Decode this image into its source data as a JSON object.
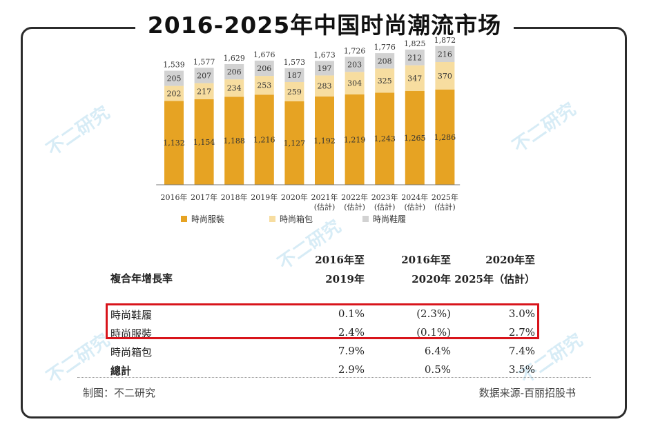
{
  "title": "2016-2025年中国时尚潮流市场",
  "watermark": "不二研究",
  "colors": {
    "apparel": "#E6A323",
    "bags": "#F7DDA0",
    "shoes": "#D2D2D2",
    "highlight": "#D8141B"
  },
  "chart_data": {
    "type": "bar",
    "stacked": true,
    "categories": [
      "2016年",
      "2017年",
      "2018年",
      "2019年",
      "2020年",
      "2021年\n(估計)",
      "2022年\n(估計)",
      "2023年\n(估計)",
      "2024年\n(估計)",
      "2025年\n(估計)"
    ],
    "series": [
      {
        "name": "時尚服裝",
        "values": [
          1132,
          1154,
          1188,
          1216,
          1127,
          1192,
          1219,
          1243,
          1265,
          1286
        ],
        "labels": [
          "1,132",
          "1,154",
          "1,188",
          "1,216",
          "1,127",
          "1,192",
          "1,219",
          "1,243",
          "1,265",
          "1,286"
        ]
      },
      {
        "name": "時尚箱包",
        "values": [
          202,
          217,
          234,
          253,
          259,
          283,
          304,
          325,
          347,
          370
        ],
        "labels": [
          "202",
          "217",
          "234",
          "253",
          "259",
          "283",
          "304",
          "325",
          "347",
          "370"
        ]
      },
      {
        "name": "時尚鞋履",
        "values": [
          205,
          207,
          206,
          206,
          187,
          197,
          203,
          208,
          212,
          216
        ],
        "labels": [
          "205",
          "207",
          "206",
          "206",
          "187",
          "197",
          "203",
          "208",
          "212",
          "216"
        ]
      }
    ],
    "totals": [
      1539,
      1577,
      1629,
      1676,
      1573,
      1673,
      1726,
      1776,
      1825,
      1872
    ],
    "total_labels": [
      "1,539",
      "1,577",
      "1,629",
      "1,676",
      "1,573",
      "1,673",
      "1,726",
      "1,776",
      "1,825",
      "1,872"
    ],
    "legend_position": "bottom"
  },
  "growth_table": {
    "row_header": "複合年增長率",
    "columns": [
      {
        "line1": "2016年至",
        "line2": "2019年"
      },
      {
        "line1": "2016年至",
        "line2": "2020年"
      },
      {
        "line1": "2020年至",
        "line2": "2025年（估計）"
      }
    ],
    "rows": [
      {
        "label": "時尚鞋履",
        "values": [
          "0.1%",
          "(2.3%)",
          "3.0%"
        ],
        "bold": false
      },
      {
        "label": "時尚服裝",
        "values": [
          "2.4%",
          "(0.1%)",
          "2.7%"
        ],
        "bold": false
      },
      {
        "label": "時尚箱包",
        "values": [
          "7.9%",
          "6.4%",
          "7.4%"
        ],
        "bold": false
      },
      {
        "label": "總計",
        "values": [
          "2.9%",
          "0.5%",
          "3.5%"
        ],
        "bold": true
      }
    ]
  },
  "footer": {
    "left": "制图：不二研究",
    "right": "数据来源-百丽招股书"
  }
}
